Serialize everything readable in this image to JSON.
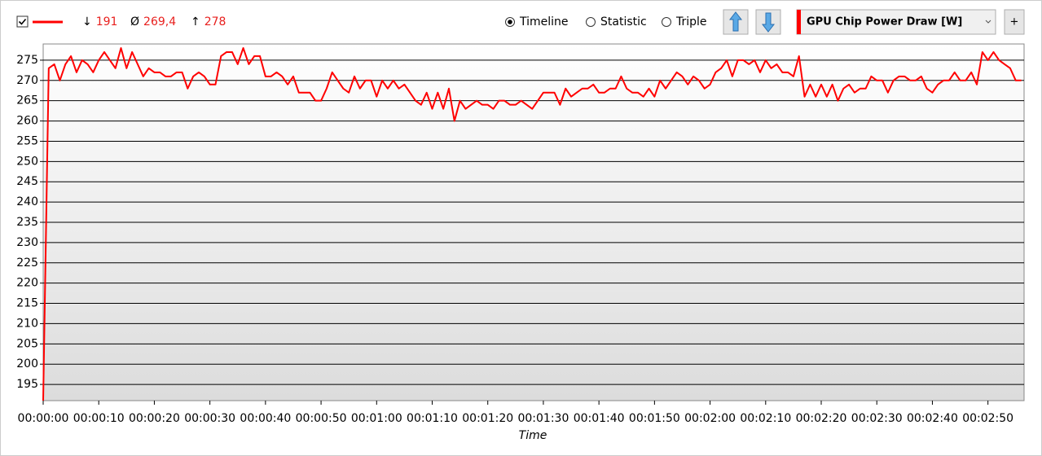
{
  "chart_data": {
    "type": "line",
    "stats": [
      {
        "symbol": "↓",
        "value": 191
      },
      {
        "symbol": "Ø",
        "value": 269.4,
        "label": "269,4"
      },
      {
        "symbol": "↑",
        "value": 278
      }
    ],
    "view_modes": [
      "Timeline",
      "Statistic",
      "Triple"
    ],
    "selected_view": "Timeline",
    "add_button": "+",
    "x_label": "Time",
    "x": [
      0,
      1,
      2,
      3,
      4,
      5,
      6,
      7,
      8,
      9,
      10,
      11,
      12,
      13,
      14,
      15,
      16,
      17,
      18,
      19,
      20,
      21,
      22,
      23,
      24,
      25,
      26,
      27,
      28,
      29,
      30,
      31,
      32,
      33,
      34,
      35,
      36,
      37,
      38,
      39,
      40,
      41,
      42,
      43,
      44,
      45,
      46,
      47,
      48,
      49,
      50,
      51,
      52,
      53,
      54,
      55,
      56,
      57,
      58,
      59,
      60,
      61,
      62,
      63,
      64,
      65,
      66,
      67,
      68,
      69,
      70,
      71,
      72,
      73,
      74,
      75,
      76,
      77,
      78,
      79,
      80,
      81,
      82,
      83,
      84,
      85,
      86,
      87,
      88,
      89,
      90,
      91,
      92,
      93,
      94,
      95,
      96,
      97,
      98,
      99,
      100,
      101,
      102,
      103,
      104,
      105,
      106,
      107,
      108,
      109,
      110,
      111,
      112,
      113,
      114,
      115,
      116,
      117,
      118,
      119,
      120,
      121,
      122,
      123,
      124,
      125,
      126,
      127,
      128,
      129,
      130,
      131,
      132,
      133,
      134,
      135,
      136,
      137,
      138,
      139,
      140,
      141,
      142,
      143,
      144,
      145,
      146,
      147,
      148,
      149,
      150,
      151,
      152,
      153,
      154,
      155,
      156,
      157,
      158,
      159,
      160,
      161,
      162,
      163,
      164,
      165,
      166,
      167,
      168,
      169,
      170,
      171,
      172,
      173,
      174,
      175,
      176
    ],
    "series": [
      {
        "name": "GPU Chip Power Draw [W]",
        "color": "#ff0000",
        "values": [
          191,
          273,
          274,
          270,
          274,
          276,
          272,
          275,
          274,
          272,
          275,
          277,
          275,
          273,
          278,
          273,
          277,
          274,
          271,
          273,
          272,
          272,
          271,
          271,
          272,
          272,
          268,
          271,
          272,
          271,
          269,
          269,
          276,
          277,
          277,
          274,
          278,
          274,
          276,
          276,
          271,
          271,
          272,
          271,
          269,
          271,
          267,
          267,
          267,
          265,
          265,
          268,
          272,
          270,
          268,
          267,
          271,
          268,
          270,
          270,
          266,
          270,
          268,
          270,
          268,
          269,
          267,
          265,
          264,
          267,
          263,
          267,
          263,
          268,
          260,
          265,
          263,
          264,
          265,
          264,
          264,
          263,
          265,
          265,
          264,
          264,
          265,
          264,
          263,
          265,
          267,
          267,
          267,
          264,
          268,
          266,
          267,
          268,
          268,
          269,
          267,
          267,
          268,
          268,
          271,
          268,
          267,
          267,
          266,
          268,
          266,
          270,
          268,
          270,
          272,
          271,
          269,
          271,
          270,
          268,
          269,
          272,
          273,
          275,
          271,
          275,
          275,
          274,
          275,
          272,
          275,
          273,
          274,
          272,
          272,
          271,
          276,
          266,
          269,
          266,
          269,
          266,
          269,
          265,
          268,
          269,
          267,
          268,
          268,
          271,
          270,
          270,
          267,
          270,
          271,
          271,
          270,
          270,
          271,
          268,
          267,
          269,
          270,
          270,
          272,
          270,
          270,
          272,
          269,
          277,
          275,
          277,
          275,
          274,
          273,
          270,
          270
        ]
      }
    ],
    "xlim": [
      0,
      176.5
    ],
    "ylim": [
      191,
      279
    ],
    "yticks": [
      195,
      200,
      205,
      210,
      215,
      220,
      225,
      230,
      235,
      240,
      245,
      250,
      255,
      260,
      265,
      270,
      275
    ],
    "xticks": [
      {
        "value": 0,
        "label": "00:00:00"
      },
      {
        "value": 10,
        "label": "00:00:10"
      },
      {
        "value": 20,
        "label": "00:00:20"
      },
      {
        "value": 30,
        "label": "00:00:30"
      },
      {
        "value": 40,
        "label": "00:00:40"
      },
      {
        "value": 50,
        "label": "00:00:50"
      },
      {
        "value": 60,
        "label": "00:01:00"
      },
      {
        "value": 70,
        "label": "00:01:10"
      },
      {
        "value": 80,
        "label": "00:01:20"
      },
      {
        "value": 90,
        "label": "00:01:30"
      },
      {
        "value": 100,
        "label": "00:01:40"
      },
      {
        "value": 110,
        "label": "00:01:50"
      },
      {
        "value": 120,
        "label": "00:02:00"
      },
      {
        "value": 130,
        "label": "00:02:10"
      },
      {
        "value": 140,
        "label": "00:02:20"
      },
      {
        "value": 150,
        "label": "00:02:30"
      },
      {
        "value": 160,
        "label": "00:02:40"
      },
      {
        "value": 170,
        "label": "00:02:50"
      }
    ],
    "grid": true
  }
}
